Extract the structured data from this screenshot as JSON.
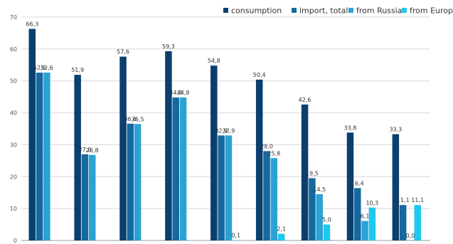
{
  "chart_data": {
    "type": "bar",
    "title": "",
    "xlabel": "",
    "ylabel": "",
    "ylim": [
      0,
      70
    ],
    "yticks": [
      0,
      10,
      20,
      30,
      40,
      50,
      60,
      70
    ],
    "grid": true,
    "legend_position": "top-right",
    "categories": [
      "",
      "",
      "",
      "",
      "",
      "",
      "",
      "",
      ""
    ],
    "series": [
      {
        "name": "consumption",
        "color": "#0b3f6e",
        "values": [
          66.3,
          51.9,
          57.6,
          59.3,
          54.8,
          50.4,
          42.6,
          33.8,
          33.3
        ],
        "labels": [
          "66,3",
          "51,9",
          "57,6",
          "59,3",
          "54,8",
          "50,4",
          "42,6",
          "33,8",
          "33,3"
        ]
      },
      {
        "name": "import, total",
        "color": "#16699e",
        "values": [
          52.6,
          27.0,
          36.6,
          44.8,
          32.9,
          28.0,
          19.5,
          16.4,
          11.1
        ],
        "labels": [
          "52,6",
          "27,0",
          "36,6",
          "44,8",
          "32,9",
          "28,0",
          "19,5",
          "16,4",
          "11,1"
        ]
      },
      {
        "name": "from Russia",
        "color": "#2aa3d4",
        "values": [
          52.6,
          26.8,
          36.5,
          44.8,
          32.9,
          25.8,
          14.5,
          6.1,
          0.0
        ],
        "labels": [
          "52,6",
          "26,8",
          "36,5",
          "44,8",
          "32,9",
          "25,8",
          "14,5",
          "6,1",
          "0,0"
        ]
      },
      {
        "name": "from Europe",
        "color": "#1ec8f0",
        "values": [
          null,
          null,
          null,
          null,
          0.1,
          2.1,
          5.0,
          10.3,
          11.1
        ],
        "labels": [
          "",
          "",
          "",
          "",
          "0,1",
          "2,1",
          "5,0",
          "10,3",
          "11,1"
        ]
      }
    ]
  }
}
